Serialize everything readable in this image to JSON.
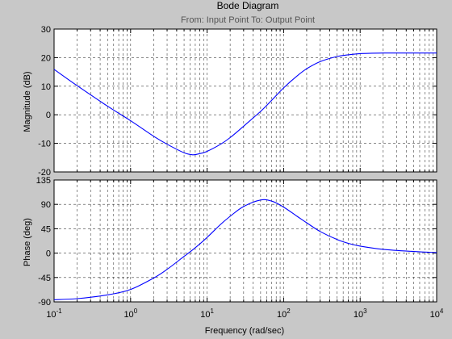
{
  "chart_data": {
    "type": "line",
    "title": "Bode Diagram",
    "subtitle": "From: Input Point  To: Output Point",
    "xlabel": "Frequency  (rad/sec)",
    "xscale": "log",
    "xlim": [
      0.1,
      10000
    ],
    "x_tick_labels": [
      {
        "base": "10",
        "exp": "-1"
      },
      {
        "base": "10",
        "exp": "0"
      },
      {
        "base": "10",
        "exp": "1"
      },
      {
        "base": "10",
        "exp": "2"
      },
      {
        "base": "10",
        "exp": "3"
      },
      {
        "base": "10",
        "exp": "4"
      }
    ],
    "grid": true,
    "color": "#0000ff",
    "panels": [
      {
        "ylabel": "Magnitude (dB)",
        "ylim": [
          -20,
          30
        ],
        "yticks": [
          "-20",
          "-10",
          "0",
          "10",
          "20",
          "30"
        ],
        "series": [
          {
            "x": [
              0.1,
              0.2,
              0.5,
              1,
              2,
              3,
              5,
              6.5,
              8,
              10,
              15,
              20,
              30,
              50,
              70,
              100,
              150,
              200,
              300,
              500,
              700,
              1000,
              2000,
              5000,
              10000
            ],
            "y": [
              15.9,
              10.2,
              3.0,
              -2.1,
              -7.5,
              -10.3,
              -13.3,
              -14.0,
              -13.6,
              -12.8,
              -10.3,
              -8.0,
              -4.0,
              1.2,
              5.1,
              9.4,
              13.6,
              16.1,
              18.6,
              20.4,
              21.0,
              21.4,
              21.6,
              21.6,
              21.6
            ]
          }
        ]
      },
      {
        "ylabel": "Phase (deg)",
        "ylim": [
          -90,
          135
        ],
        "yticks": [
          "-90",
          "-45",
          "0",
          "45",
          "90",
          "135"
        ],
        "series": [
          {
            "x": [
              0.1,
              0.2,
              0.5,
              1,
              2,
              3,
              5,
              7,
              10,
              15,
              20,
              30,
              50,
              70,
              100,
              150,
              200,
              300,
              500,
              700,
              1000,
              2000,
              5000,
              10000
            ],
            "y": [
              -86,
              -84,
              -77,
              -67,
              -46,
              -30,
              -6,
              10,
              29,
              53,
              68,
              86,
              98,
              96,
              85,
              68,
              56,
              40,
              25,
              18,
              13,
              7,
              3,
              1
            ]
          }
        ]
      }
    ]
  }
}
